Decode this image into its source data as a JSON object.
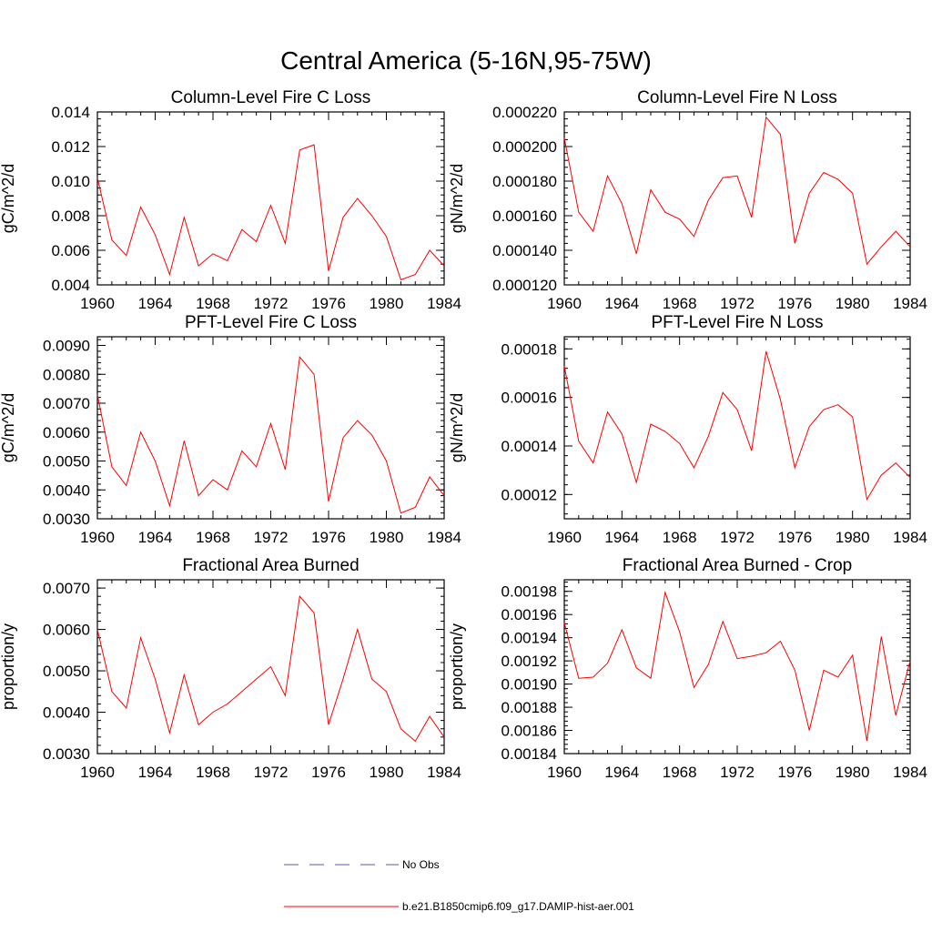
{
  "figure": {
    "title": "Central America (5-16N,95-75W)"
  },
  "legend": [
    {
      "label": "No Obs",
      "color": "#5a5aa8",
      "dashed": true
    },
    {
      "label": "b.e21.B1850cmip6.f09_g17.DAMIP-hist-aer.001",
      "color": "#ff0000",
      "dashed": false
    }
  ],
  "chart_data": [
    {
      "type": "line",
      "title": "Column-Level Fire C Loss",
      "ylabel": "gC/m^2/d",
      "xlim": [
        1960,
        1984
      ],
      "ylim": [
        0.004,
        0.014
      ],
      "xticks": [
        "1960",
        "1964",
        "1968",
        "1972",
        "1976",
        "1980",
        "1984"
      ],
      "yticks": [
        "0.004",
        "0.006",
        "0.008",
        "0.010",
        "0.012",
        "0.014"
      ],
      "x": [
        1960,
        1961,
        1962,
        1963,
        1964,
        1965,
        1966,
        1967,
        1968,
        1969,
        1970,
        1971,
        1972,
        1973,
        1974,
        1975,
        1976,
        1977,
        1978,
        1979,
        1980,
        1981,
        1982,
        1983,
        1984
      ],
      "series": [
        {
          "color": "#ff0000",
          "values": [
            0.0102,
            0.0066,
            0.0057,
            0.0085,
            0.0069,
            0.0046,
            0.0079,
            0.0051,
            0.0058,
            0.0054,
            0.0072,
            0.0065,
            0.0086,
            0.0064,
            0.0118,
            0.0121,
            0.0048,
            0.0079,
            0.009,
            0.008,
            0.0068,
            0.0043,
            0.0046,
            0.006,
            0.0051
          ]
        }
      ]
    },
    {
      "type": "line",
      "title": "Column-Level Fire N Loss",
      "ylabel": "gN/m^2/d",
      "xlim": [
        1960,
        1984
      ],
      "ylim": [
        0.00012,
        0.00022
      ],
      "xticks": [
        "1960",
        "1964",
        "1968",
        "1972",
        "1976",
        "1980",
        "1984"
      ],
      "yticks": [
        "0.000120",
        "0.000140",
        "0.000160",
        "0.000180",
        "0.000200",
        "0.000220"
      ],
      "x": [
        1960,
        1961,
        1962,
        1963,
        1964,
        1965,
        1966,
        1967,
        1968,
        1969,
        1970,
        1971,
        1972,
        1973,
        1974,
        1975,
        1976,
        1977,
        1978,
        1979,
        1980,
        1981,
        1982,
        1983,
        1984
      ],
      "series": [
        {
          "color": "#ff0000",
          "values": [
            0.000205,
            0.000162,
            0.000151,
            0.000183,
            0.000167,
            0.000138,
            0.000175,
            0.000162,
            0.000158,
            0.000148,
            0.000169,
            0.000182,
            0.000183,
            0.000159,
            0.000217,
            0.000207,
            0.000144,
            0.000173,
            0.000185,
            0.000181,
            0.000173,
            0.000132,
            0.000142,
            0.000151,
            0.000142
          ]
        }
      ]
    },
    {
      "type": "line",
      "title": "PFT-Level Fire C Loss",
      "ylabel": "gC/m^2/d",
      "xlim": [
        1960,
        1984
      ],
      "ylim": [
        0.003,
        0.0093
      ],
      "xticks": [
        "1960",
        "1964",
        "1968",
        "1972",
        "1976",
        "1980",
        "1984"
      ],
      "yticks": [
        "0.0030",
        "0.0040",
        "0.0050",
        "0.0060",
        "0.0070",
        "0.0080",
        "0.0090"
      ],
      "x": [
        1960,
        1961,
        1962,
        1963,
        1964,
        1965,
        1966,
        1967,
        1968,
        1969,
        1970,
        1971,
        1972,
        1973,
        1974,
        1975,
        1976,
        1977,
        1978,
        1979,
        1980,
        1981,
        1982,
        1983,
        1984
      ],
      "series": [
        {
          "color": "#ff0000",
          "values": [
            0.0073,
            0.0048,
            0.00415,
            0.006,
            0.005,
            0.00345,
            0.0057,
            0.0038,
            0.00435,
            0.004,
            0.00535,
            0.0048,
            0.0063,
            0.0047,
            0.0086,
            0.008,
            0.0036,
            0.0058,
            0.0064,
            0.0059,
            0.005,
            0.0032,
            0.0034,
            0.00445,
            0.0038
          ]
        }
      ]
    },
    {
      "type": "line",
      "title": "PFT-Level Fire N Loss",
      "ylabel": "gN/m^2/d",
      "xlim": [
        1960,
        1984
      ],
      "ylim": [
        0.00011,
        0.000185
      ],
      "xticks": [
        "1960",
        "1964",
        "1968",
        "1972",
        "1976",
        "1980",
        "1984"
      ],
      "yticks": [
        "0.00012",
        "0.00014",
        "0.00016",
        "0.00018"
      ],
      "x": [
        1960,
        1961,
        1962,
        1963,
        1964,
        1965,
        1966,
        1967,
        1968,
        1969,
        1970,
        1971,
        1972,
        1973,
        1974,
        1975,
        1976,
        1977,
        1978,
        1979,
        1980,
        1981,
        1982,
        1983,
        1984
      ],
      "series": [
        {
          "color": "#ff0000",
          "values": [
            0.000173,
            0.000142,
            0.000133,
            0.000154,
            0.000145,
            0.000125,
            0.000149,
            0.000146,
            0.000141,
            0.000131,
            0.000144,
            0.000162,
            0.000155,
            0.000138,
            0.000179,
            0.000159,
            0.000131,
            0.000148,
            0.000155,
            0.000157,
            0.000152,
            0.000118,
            0.000128,
            0.000133,
            0.000127
          ]
        }
      ]
    },
    {
      "type": "line",
      "title": "Fractional Area Burned",
      "ylabel": "proportion/y",
      "xlim": [
        1960,
        1984
      ],
      "ylim": [
        0.003,
        0.0072
      ],
      "xticks": [
        "1960",
        "1964",
        "1968",
        "1972",
        "1976",
        "1980",
        "1984"
      ],
      "yticks": [
        "0.0030",
        "0.0040",
        "0.0050",
        "0.0060",
        "0.0070"
      ],
      "x": [
        1960,
        1961,
        1962,
        1963,
        1964,
        1965,
        1966,
        1967,
        1968,
        1969,
        1970,
        1971,
        1972,
        1973,
        1974,
        1975,
        1976,
        1977,
        1978,
        1979,
        1980,
        1981,
        1982,
        1983,
        1984
      ],
      "series": [
        {
          "color": "#ff0000",
          "values": [
            0.006,
            0.0045,
            0.0041,
            0.0058,
            0.0048,
            0.0035,
            0.0049,
            0.0037,
            0.004,
            0.0042,
            0.0045,
            0.0048,
            0.0051,
            0.0044,
            0.0068,
            0.0064,
            0.0037,
            0.0048,
            0.006,
            0.0048,
            0.0045,
            0.0036,
            0.0033,
            0.0039,
            0.0034
          ]
        }
      ]
    },
    {
      "type": "line",
      "title": "Fractional Area Burned - Crop",
      "ylabel": "proportion/y",
      "xlim": [
        1960,
        1984
      ],
      "ylim": [
        0.00184,
        0.00199
      ],
      "xticks": [
        "1960",
        "1964",
        "1968",
        "1972",
        "1976",
        "1980",
        "1984"
      ],
      "yticks": [
        "0.00184",
        "0.00186",
        "0.00188",
        "0.00190",
        "0.00192",
        "0.00194",
        "0.00196",
        "0.00198"
      ],
      "x": [
        1960,
        1961,
        1962,
        1963,
        1964,
        1965,
        1966,
        1967,
        1968,
        1969,
        1970,
        1971,
        1972,
        1973,
        1974,
        1975,
        1976,
        1977,
        1978,
        1979,
        1980,
        1981,
        1982,
        1983,
        1984
      ],
      "series": [
        {
          "color": "#ff0000",
          "values": [
            0.001953,
            0.001905,
            0.001906,
            0.001918,
            0.001947,
            0.001914,
            0.001905,
            0.001979,
            0.001945,
            0.001897,
            0.001917,
            0.001954,
            0.001922,
            0.001924,
            0.001927,
            0.001937,
            0.001912,
            0.00186,
            0.001912,
            0.001906,
            0.001925,
            0.001851,
            0.001941,
            0.001873,
            0.00192
          ]
        }
      ]
    }
  ]
}
